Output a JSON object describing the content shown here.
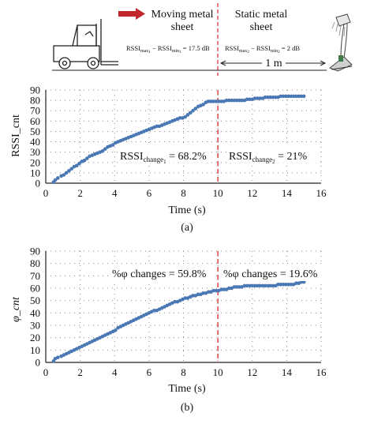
{
  "header": {
    "moving_label_1": "Moving metal",
    "moving_label_2": "sheet",
    "static_label_1": "Static metal",
    "static_label_2": "sheet",
    "rssi_eq_left": "RSSI",
    "rssi_eq_left_sub1": "max",
    "rssi_eq_left_sub2": "1",
    "rssi_eq_left_mid": " − RSSI",
    "rssi_eq_left_sub3": "min",
    "rssi_eq_left_sub4": "1",
    "rssi_eq_left_val": " = 17.5 dB",
    "rssi_eq_right_val": " = 2 dB",
    "rssi_eq_right_sub2": "2",
    "distance_label": "1 m",
    "arrow_color": "#c0282d",
    "icons": [
      "forklift-icon",
      "moving-arrow-icon",
      "reader-antenna-icon",
      "tag-icon"
    ]
  },
  "chart_data": [
    {
      "type": "scatter",
      "ylabel": "RSSI_cnt",
      "xlabel": "Time (s)",
      "caption": "(a)",
      "xlim": [
        0,
        16
      ],
      "ylim": [
        0,
        90
      ],
      "xticks": [
        "0",
        "2",
        "4",
        "6",
        "8",
        "10",
        "12",
        "14",
        "16"
      ],
      "yticks": [
        "0",
        "10",
        "20",
        "30",
        "40",
        "50",
        "60",
        "70",
        "80",
        "90"
      ],
      "grid": true,
      "divider_x": 10,
      "annotations": [
        {
          "base": "RSSI",
          "sub": "change",
          "subsub": "1",
          "rest": " = 68.2%"
        },
        {
          "base": "RSSI",
          "sub": "change",
          "subsub": "2",
          "rest": " = 21%"
        }
      ],
      "series_color": "#4a78b4",
      "x": [
        0.45,
        0.55,
        0.7,
        0.9,
        1.05,
        1.2,
        1.35,
        1.5,
        1.65,
        1.8,
        1.95,
        2.1,
        2.25,
        2.4,
        2.55,
        2.7,
        2.85,
        3.0,
        3.15,
        3.3,
        3.45,
        3.6,
        3.75,
        3.9,
        4.05,
        4.2,
        4.35,
        4.5,
        4.65,
        4.8,
        4.95,
        5.1,
        5.25,
        5.4,
        5.55,
        5.7,
        5.85,
        6.0,
        6.15,
        6.3,
        6.45,
        6.6,
        6.75,
        6.9,
        7.05,
        7.2,
        7.35,
        7.5,
        7.65,
        7.8,
        7.95,
        8.1,
        8.25,
        8.4,
        8.55,
        8.7,
        8.85,
        9.0,
        9.15,
        9.3,
        9.45,
        9.6,
        9.75,
        9.9,
        10.05,
        10.2,
        10.35,
        10.5,
        10.65,
        10.8,
        10.95,
        11.1,
        11.25,
        11.4,
        11.55,
        11.7,
        11.85,
        12.0,
        12.15,
        12.3,
        12.45,
        12.6,
        12.75,
        12.9,
        13.05,
        13.2,
        13.35,
        13.5,
        13.65,
        13.8,
        13.95,
        14.1,
        14.25,
        14.4,
        14.55,
        14.7,
        14.85,
        15.0
      ],
      "y": [
        1,
        3,
        5,
        7,
        8,
        10,
        12,
        14,
        16,
        17,
        19,
        21,
        22,
        24,
        26,
        27,
        28,
        29,
        30,
        31,
        33,
        35,
        36,
        37,
        39,
        40,
        41,
        42,
        43,
        44,
        45,
        46,
        47,
        48,
        49,
        50,
        51,
        52,
        53,
        54,
        55,
        55,
        56,
        57,
        58,
        59,
        60,
        61,
        62,
        63,
        63,
        64,
        66,
        68,
        70,
        72,
        74,
        75,
        76,
        78,
        79,
        79,
        79,
        79,
        79,
        79,
        79,
        80,
        80,
        80,
        80,
        80,
        80,
        80,
        80,
        81,
        81,
        81,
        82,
        82,
        82,
        82,
        83,
        83,
        83,
        83,
        83,
        83,
        84,
        84,
        84,
        84,
        84,
        84,
        84,
        84,
        84,
        84
      ]
    },
    {
      "type": "scatter",
      "ylabel": "φ_cnt",
      "xlabel": "Time (s)",
      "caption": "(b)",
      "xlim": [
        0,
        16
      ],
      "ylim": [
        0,
        90
      ],
      "xticks": [
        "0",
        "2",
        "4",
        "6",
        "8",
        "10",
        "12",
        "14",
        "16"
      ],
      "yticks": [
        "0",
        "10",
        "20",
        "30",
        "40",
        "50",
        "60",
        "70",
        "80",
        "90"
      ],
      "grid": true,
      "divider_x": 10,
      "annotations": [
        {
          "text": "%φ changes = 59.8%"
        },
        {
          "text": "%φ changes = 19.6%"
        }
      ],
      "series_color": "#4a78b4",
      "x": [
        0.45,
        0.55,
        0.7,
        0.9,
        1.05,
        1.2,
        1.35,
        1.5,
        1.65,
        1.8,
        1.95,
        2.1,
        2.25,
        2.4,
        2.55,
        2.7,
        2.85,
        3.0,
        3.15,
        3.3,
        3.45,
        3.6,
        3.75,
        3.9,
        4.05,
        4.2,
        4.35,
        4.5,
        4.65,
        4.8,
        4.95,
        5.1,
        5.25,
        5.4,
        5.55,
        5.7,
        5.85,
        6.0,
        6.15,
        6.3,
        6.45,
        6.6,
        6.75,
        6.9,
        7.05,
        7.2,
        7.35,
        7.5,
        7.65,
        7.8,
        7.95,
        8.1,
        8.25,
        8.4,
        8.55,
        8.7,
        8.85,
        9.0,
        9.15,
        9.3,
        9.45,
        9.6,
        9.75,
        9.9,
        10.05,
        10.2,
        10.35,
        10.5,
        10.65,
        10.8,
        10.95,
        11.1,
        11.25,
        11.4,
        11.55,
        11.7,
        11.85,
        12.0,
        12.15,
        12.3,
        12.45,
        12.6,
        12.75,
        12.9,
        13.05,
        13.2,
        13.35,
        13.5,
        13.65,
        13.8,
        13.95,
        14.1,
        14.25,
        14.4,
        14.55,
        14.7,
        14.85,
        15.0
      ],
      "y": [
        1,
        3,
        4,
        5,
        6,
        7,
        8,
        9,
        10,
        11,
        12,
        13,
        14,
        15,
        16,
        17,
        18,
        19,
        20,
        21,
        22,
        23,
        24,
        25,
        26,
        28,
        29,
        30,
        31,
        32,
        33,
        34,
        35,
        36,
        37,
        38,
        39,
        40,
        41,
        42,
        42,
        43,
        44,
        45,
        46,
        47,
        48,
        49,
        49,
        50,
        51,
        52,
        52,
        53,
        54,
        54,
        55,
        55,
        56,
        56,
        57,
        57,
        58,
        58,
        58,
        59,
        59,
        59,
        60,
        60,
        61,
        61,
        61,
        61,
        62,
        62,
        62,
        62,
        62,
        62,
        62,
        62,
        62,
        62,
        62,
        62,
        62,
        63,
        63,
        63,
        63,
        63,
        63,
        63,
        64,
        64,
        65,
        65
      ]
    }
  ]
}
